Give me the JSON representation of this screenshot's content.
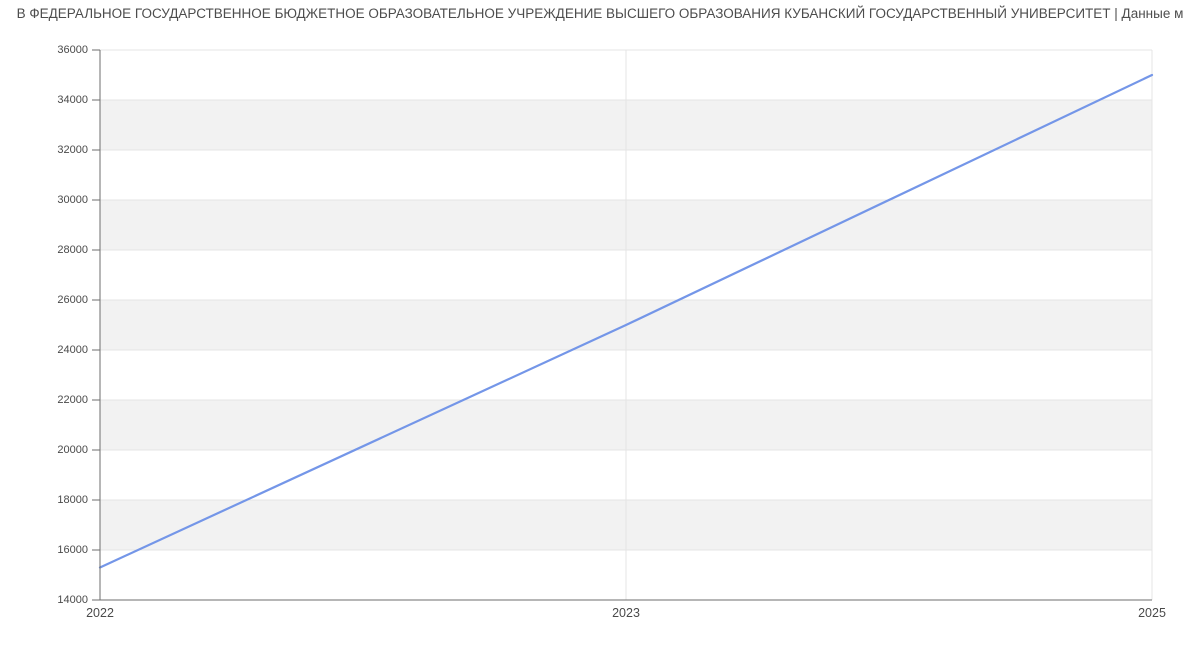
{
  "page": {
    "title": "В ФЕДЕРАЛЬНОЕ ГОСУДАРСТВЕННОЕ БЮДЖЕТНОЕ ОБРАЗОВАТЕЛЬНОЕ УЧРЕЖДЕНИЕ ВЫСШЕГО ОБРАЗОВАНИЯ КУБАНСКИЙ ГОСУДАРСТВЕННЫЙ УНИВЕРСИТЕТ | Данные м"
  },
  "chart_data": {
    "type": "line",
    "title": "В ФЕДЕРАЛЬНОЕ ГОСУДАРСТВЕННОЕ БЮДЖЕТНОЕ ОБРАЗОВАТЕЛЬНОЕ УЧРЕЖДЕНИЕ ВЫСШЕГО ОБРАЗОВАНИЯ КУБАНСКИЙ ГОСУДАРСТВЕННЫЙ УНИВЕРСИТЕТ | Данные м",
    "categories": [
      "2022",
      "2023",
      "2025"
    ],
    "values": [
      15300,
      25000,
      35000
    ],
    "xlabel": "",
    "ylabel": "",
    "ylim": [
      14000,
      36000
    ],
    "ytick_step": 2000,
    "ytick_labels": [
      "14000",
      "16000",
      "18000",
      "20000",
      "22000",
      "24000",
      "26000",
      "28000",
      "30000",
      "32000",
      "34000",
      "36000"
    ],
    "grid": "alternating horizontal gray bands every 2000, light gridlines at ticks, vertical gridlines at category positions",
    "legend": "none",
    "colors": {
      "line": "#7496e8",
      "band": "#f2f2f2",
      "gridline": "#e4e4e4",
      "axis": "#6e6e6e",
      "tick_label": "#4a4a4a",
      "title": "#4d4d4d",
      "background": "#ffffff"
    }
  }
}
